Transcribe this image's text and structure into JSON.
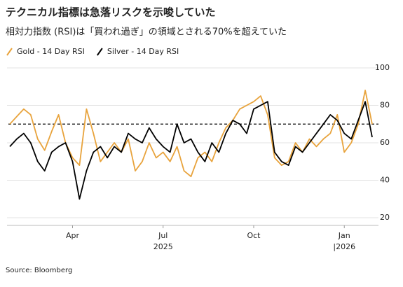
{
  "chart_data": {
    "type": "line",
    "title": "テクニカル指標は急落リスクを示唆していた",
    "subtitle": "相対力指数 (RSI)は「買われ過ぎ」の領域とされる70%を超えていた",
    "source": "Source: Bloomberg",
    "categories": [
      null,
      null,
      null,
      null,
      null,
      null,
      null,
      null,
      null,
      "Apr",
      null,
      null,
      null,
      null,
      null,
      null,
      null,
      null,
      null,
      null,
      null,
      null,
      "Jul",
      null,
      null,
      null,
      null,
      null,
      null,
      null,
      null,
      null,
      null,
      null,
      null,
      "Oct",
      null,
      null,
      null,
      null,
      null,
      null,
      null,
      null,
      null,
      null,
      null,
      null,
      "Jan",
      null,
      null,
      null,
      null
    ],
    "years": [
      "2025",
      "|2026"
    ],
    "series": [
      {
        "name": "Gold - 14 Day RSI",
        "color": "#e8a33c",
        "values": [
          70,
          74,
          78,
          75,
          62,
          56,
          66,
          75,
          60,
          52,
          48,
          78,
          65,
          50,
          55,
          60,
          55,
          62,
          45,
          50,
          60,
          52,
          55,
          50,
          58,
          45,
          42,
          52,
          55,
          50,
          60,
          68,
          72,
          78,
          80,
          82,
          85,
          75,
          52,
          48,
          50,
          60,
          55,
          62,
          58,
          62,
          65,
          75,
          55,
          60,
          70,
          88,
          70
        ]
      },
      {
        "name": "Silver - 14 Day RSI",
        "color": "#000000",
        "values": [
          58,
          62,
          65,
          60,
          50,
          45,
          55,
          58,
          60,
          50,
          30,
          45,
          55,
          58,
          52,
          58,
          55,
          65,
          62,
          60,
          68,
          62,
          58,
          55,
          70,
          60,
          62,
          55,
          50,
          60,
          55,
          65,
          72,
          70,
          65,
          78,
          80,
          82,
          55,
          50,
          48,
          58,
          55,
          60,
          65,
          70,
          75,
          72,
          65,
          62,
          72,
          82,
          63
        ]
      }
    ],
    "threshold": 70,
    "ylim": [
      20,
      100
    ],
    "yticks": [
      20,
      40,
      60,
      80,
      100
    ],
    "grid": true
  }
}
